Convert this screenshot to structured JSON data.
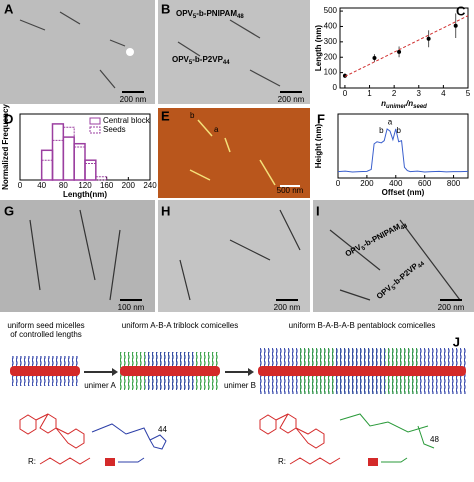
{
  "figure": {
    "panels": {
      "A": {
        "label": "A",
        "scale": "200 nm"
      },
      "B": {
        "label": "B",
        "scale": "200 nm",
        "name1": [
          "OPV",
          "5",
          "-b-PNIPAM",
          "48"
        ],
        "name2": [
          "OPV",
          "5",
          "-b-P2VP",
          "44"
        ]
      },
      "E": {
        "label": "E",
        "scale": "500 nm",
        "marks": [
          "b",
          "a"
        ]
      },
      "G": {
        "label": "G",
        "scale": "100 nm"
      },
      "H": {
        "label": "H",
        "scale": "200 nm"
      },
      "I": {
        "label": "I",
        "scale": "200 nm",
        "name1": [
          "OPV",
          "5",
          "-b-PNIPAM",
          "48"
        ],
        "name2": [
          "OPV",
          "5",
          "-b-P2VP",
          "44"
        ]
      },
      "J": {
        "label": "J",
        "seed": [
          "uniform seed micelles",
          "of controlled lengths"
        ],
        "tri": "uniform A-B-A triblock comicelles",
        "penta": "uniform B-A-B-A-B pentablock comicelles",
        "unimerA": "unimer A",
        "unimerB": "unimer B",
        "r1": "R:",
        "r2": "R:",
        "n1": "44",
        "n2": "48"
      }
    }
  },
  "chart_data": [
    {
      "type": "scatter",
      "label": "C",
      "y_label": "Length (nm)",
      "x_label_parts": [
        "n",
        "unimer",
        "/n",
        "seed"
      ],
      "x": [
        0,
        1.2,
        2.2,
        3.4,
        4.5
      ],
      "values": [
        80,
        195,
        235,
        320,
        405
      ],
      "errors": [
        15,
        25,
        35,
        55,
        80
      ],
      "color": "#000000",
      "fit": {
        "x": [
          0,
          5
        ],
        "values": [
          75,
          470
        ],
        "color": "#d03030"
      },
      "xlim": [
        -0.2,
        5
      ],
      "ylim": [
        0,
        520
      ],
      "xticks": [
        0,
        1,
        2,
        3,
        4,
        5
      ],
      "yticks": [
        0,
        100,
        200,
        300,
        400,
        500
      ]
    },
    {
      "type": "histogram",
      "label": "D",
      "y_label": "Normalized Frequency",
      "x_label": "Length(nm)",
      "bins": [
        0,
        20,
        40,
        60,
        80,
        100,
        120,
        140,
        160,
        180,
        200,
        220,
        240
      ],
      "series": [
        {
          "name": "Central block",
          "color": "#9b3fa0",
          "values": [
            0,
            0,
            0.45,
            0.85,
            0.65,
            0.55,
            0.3,
            0,
            0,
            0,
            0,
            0
          ]
        },
        {
          "name": "Seeds",
          "color": "#9b3fa0",
          "values": [
            0,
            0,
            0.3,
            0.6,
            0.8,
            0.5,
            0.25,
            0.05,
            0,
            0,
            0,
            0
          ]
        }
      ],
      "xlim": [
        0,
        240
      ],
      "ylim": [
        0,
        1
      ],
      "xticks": [
        0,
        40,
        80,
        120,
        160,
        200,
        240
      ],
      "legend": "upper right"
    },
    {
      "type": "line",
      "label": "F",
      "y_label": "Height (nm)",
      "x_label": "Offset (nm)",
      "color": "#3a5fcd",
      "x": [
        0,
        50,
        100,
        150,
        200,
        230,
        250,
        270,
        300,
        320,
        340,
        360,
        380,
        400,
        420,
        440,
        460,
        480,
        500,
        550,
        600,
        650,
        700,
        750,
        800,
        850,
        900
      ],
      "values": [
        0.3,
        0.32,
        0.28,
        0.3,
        0.31,
        0.4,
        1.6,
        1.7,
        1.65,
        1.75,
        2.3,
        2.2,
        1.8,
        2.3,
        1.7,
        1.75,
        0.5,
        0.35,
        0.3,
        0.32,
        0.28,
        0.3,
        0.31,
        0.29,
        0.3,
        0.3,
        0.31
      ],
      "annotations": [
        {
          "x": 300,
          "y": 2.2,
          "text": "b"
        },
        {
          "x": 360,
          "y": 2.6,
          "text": "a"
        },
        {
          "x": 420,
          "y": 2.2,
          "text": "b"
        }
      ],
      "xlim": [
        0,
        900
      ],
      "ylim": [
        0,
        3
      ],
      "xticks": [
        0,
        200,
        400,
        600,
        800
      ]
    }
  ]
}
